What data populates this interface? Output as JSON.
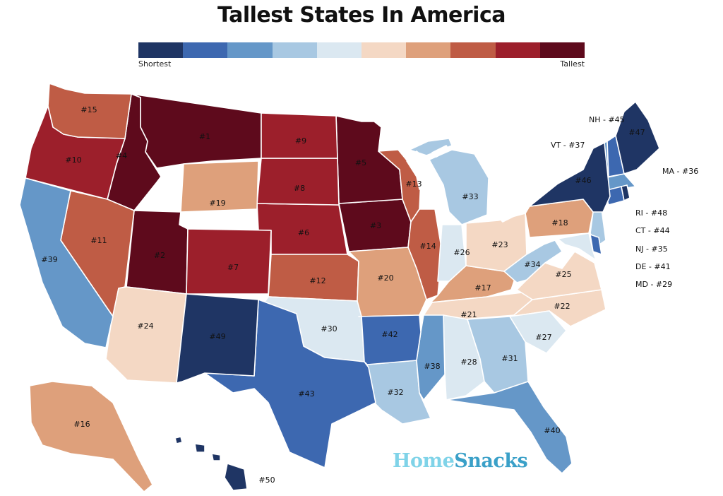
{
  "title": "Tallest States In America",
  "legend": {
    "low_label": "Shortest",
    "high_label": "Tallest",
    "colors": [
      "#1f3564",
      "#3d68b0",
      "#6597c8",
      "#a8c8e2",
      "#dbe8f1",
      "#f4d8c4",
      "#dea07b",
      "#bf5c45",
      "#9c1f2b",
      "#5e0a1c"
    ]
  },
  "brand": {
    "part1": "Home",
    "part2": "Snacks"
  },
  "states": [
    {
      "abbr": "MT",
      "label": "#1",
      "rank": 1
    },
    {
      "abbr": "UT",
      "label": "#2",
      "rank": 2
    },
    {
      "abbr": "IA",
      "label": "#3",
      "rank": 3
    },
    {
      "abbr": "ID",
      "label": "#4",
      "rank": 4
    },
    {
      "abbr": "MN",
      "label": "#5",
      "rank": 5
    },
    {
      "abbr": "NE",
      "label": "#6",
      "rank": 6
    },
    {
      "abbr": "CO",
      "label": "#7",
      "rank": 7
    },
    {
      "abbr": "SD",
      "label": "#8",
      "rank": 8
    },
    {
      "abbr": "ND",
      "label": "#9",
      "rank": 9
    },
    {
      "abbr": "OR",
      "label": "#10",
      "rank": 10
    },
    {
      "abbr": "NV",
      "label": "#11",
      "rank": 11
    },
    {
      "abbr": "KS",
      "label": "#12",
      "rank": 12
    },
    {
      "abbr": "WI",
      "label": "#13",
      "rank": 13
    },
    {
      "abbr": "IL",
      "label": "#14",
      "rank": 14
    },
    {
      "abbr": "WA",
      "label": "#15",
      "rank": 15
    },
    {
      "abbr": "AK",
      "label": "#16",
      "rank": 16
    },
    {
      "abbr": "KY",
      "label": "#17",
      "rank": 17
    },
    {
      "abbr": "PA",
      "label": "#18",
      "rank": 18
    },
    {
      "abbr": "WY",
      "label": "#19",
      "rank": 19
    },
    {
      "abbr": "MO",
      "label": "#20",
      "rank": 20
    },
    {
      "abbr": "TN",
      "label": "#21",
      "rank": 21
    },
    {
      "abbr": "NC",
      "label": "#22",
      "rank": 22
    },
    {
      "abbr": "OH",
      "label": "#23",
      "rank": 23
    },
    {
      "abbr": "AZ",
      "label": "#24",
      "rank": 24
    },
    {
      "abbr": "VA",
      "label": "#25",
      "rank": 25
    },
    {
      "abbr": "IN",
      "label": "#26",
      "rank": 26
    },
    {
      "abbr": "SC",
      "label": "#27",
      "rank": 27
    },
    {
      "abbr": "AL",
      "label": "#28",
      "rank": 28
    },
    {
      "abbr": "MD",
      "label": "MD - #29",
      "rank": 29
    },
    {
      "abbr": "OK",
      "label": "#30",
      "rank": 30
    },
    {
      "abbr": "GA",
      "label": "#31",
      "rank": 31
    },
    {
      "abbr": "LA",
      "label": "#32",
      "rank": 32
    },
    {
      "abbr": "MI",
      "label": "#33",
      "rank": 33
    },
    {
      "abbr": "WV",
      "label": "#34",
      "rank": 34
    },
    {
      "abbr": "NJ",
      "label": "NJ - #35",
      "rank": 35
    },
    {
      "abbr": "MA",
      "label": "MA - #36",
      "rank": 36
    },
    {
      "abbr": "VT",
      "label": "VT - #37",
      "rank": 37
    },
    {
      "abbr": "MS",
      "label": "#38",
      "rank": 38
    },
    {
      "abbr": "CA",
      "label": "#39",
      "rank": 39
    },
    {
      "abbr": "FL",
      "label": "#40",
      "rank": 40
    },
    {
      "abbr": "DE",
      "label": "DE - #41",
      "rank": 41
    },
    {
      "abbr": "AR",
      "label": "#42",
      "rank": 42
    },
    {
      "abbr": "TX",
      "label": "#43",
      "rank": 43
    },
    {
      "abbr": "CT",
      "label": "CT - #44",
      "rank": 44
    },
    {
      "abbr": "NH",
      "label": "NH - #45",
      "rank": 45
    },
    {
      "abbr": "NY",
      "label": "#46",
      "rank": 46
    },
    {
      "abbr": "ME",
      "label": "#47",
      "rank": 47
    },
    {
      "abbr": "RI",
      "label": "RI - #48",
      "rank": 48
    },
    {
      "abbr": "NM",
      "label": "#49",
      "rank": 49
    },
    {
      "abbr": "HI",
      "label": "#50",
      "rank": 50
    }
  ]
}
